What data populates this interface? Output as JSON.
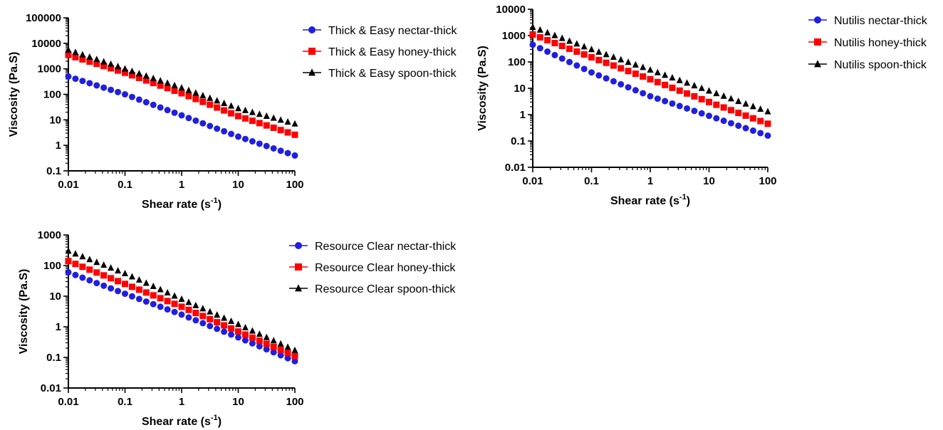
{
  "chart_data": [
    {
      "type": "scatter",
      "xscale": "log",
      "yscale": "log",
      "xlim": [
        0.01,
        100
      ],
      "ylim": [
        0.1,
        100000
      ],
      "xticks": [
        "0.01",
        "0.1",
        "1",
        "10",
        "100"
      ],
      "yticks": [
        "0.1",
        "1",
        "10",
        "100",
        "1000",
        "10000",
        "100000"
      ],
      "xlabel": "Shear rate (s",
      "xlabel_sup": "-1",
      "xlabel_end": ")",
      "ylabel": "Viscosity (Pa.S)",
      "legend_position": "right",
      "series": [
        {
          "name": "Thick & Easy nectar-thick",
          "marker": "circle",
          "color": "#1f1fe0",
          "x": [
            0.01,
            0.1,
            1,
            10,
            100
          ],
          "y": [
            500,
            100,
            15,
            2.2,
            0.4
          ]
        },
        {
          "name": "Thick & Easy honey-thick",
          "marker": "square",
          "color": "#ff0000",
          "x": [
            0.01,
            0.1,
            1,
            10,
            100
          ],
          "y": [
            3500,
            700,
            110,
            14,
            2.6
          ]
        },
        {
          "name": "Thick & Easy spoon-thick",
          "marker": "triangle",
          "color": "#000000",
          "x": [
            0.01,
            0.1,
            1,
            10,
            100
          ],
          "y": [
            5500,
            1000,
            180,
            28,
            7
          ]
        }
      ]
    },
    {
      "type": "scatter",
      "xscale": "log",
      "yscale": "log",
      "xlim": [
        0.01,
        100
      ],
      "ylim": [
        0.01,
        10000
      ],
      "xticks": [
        "0.01",
        "0.1",
        "1",
        "10",
        "100"
      ],
      "yticks": [
        "0.01",
        "0.1",
        "1",
        "10",
        "100",
        "1000",
        "10000"
      ],
      "xlabel": "Shear rate (s",
      "xlabel_sup": "-1",
      "xlabel_end": ")",
      "ylabel": "Viscosity (Pa.S)",
      "legend_position": "right",
      "series": [
        {
          "name": "Nutilis nectar-thick",
          "marker": "circle",
          "color": "#1f1fe0",
          "x": [
            0.01,
            0.1,
            1,
            10,
            100
          ],
          "y": [
            450,
            40,
            5,
            0.9,
            0.16
          ]
        },
        {
          "name": "Nutilis honey-thick",
          "marker": "square",
          "color": "#ff0000",
          "x": [
            0.01,
            0.1,
            1,
            10,
            100
          ],
          "y": [
            1100,
            150,
            22,
            3,
            0.45
          ]
        },
        {
          "name": "Nutilis spoon-thick",
          "marker": "triangle",
          "color": "#000000",
          "x": [
            0.01,
            0.1,
            1,
            10,
            100
          ],
          "y": [
            2100,
            300,
            50,
            8,
            1.3
          ]
        }
      ]
    },
    {
      "type": "scatter",
      "xscale": "log",
      "yscale": "log",
      "xlim": [
        0.01,
        100
      ],
      "ylim": [
        0.01,
        1000
      ],
      "xticks": [
        "0.01",
        "0.1",
        "1",
        "10",
        "100"
      ],
      "yticks": [
        "0.01",
        "0.1",
        "1",
        "10",
        "100",
        "1000"
      ],
      "xlabel": "Shear rate (s",
      "xlabel_sup": "-1",
      "xlabel_end": ")",
      "ylabel": "Viscosity (Pa.S)",
      "legend_position": "right",
      "series": [
        {
          "name": "Resource Clear nectar-thick",
          "marker": "circle",
          "color": "#1f1fe0",
          "x": [
            0.01,
            0.1,
            1,
            10,
            100
          ],
          "y": [
            60,
            12,
            2.5,
            0.45,
            0.075
          ]
        },
        {
          "name": "Resource Clear honey-thick",
          "marker": "square",
          "color": "#ff0000",
          "x": [
            0.01,
            0.1,
            1,
            10,
            100
          ],
          "y": [
            140,
            25,
            4.5,
            0.7,
            0.11
          ]
        },
        {
          "name": "Resource Clear spoon-thick",
          "marker": "triangle",
          "color": "#000000",
          "x": [
            0.01,
            0.1,
            1,
            10,
            100
          ],
          "y": [
            300,
            55,
            8,
            1.2,
            0.17
          ]
        }
      ]
    }
  ]
}
